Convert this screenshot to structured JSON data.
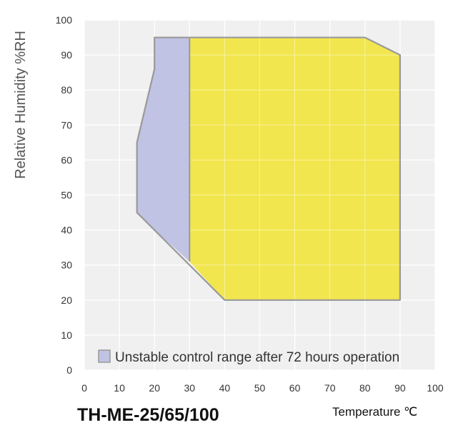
{
  "model_title": "TH-ME-25/65/100",
  "chart_data": {
    "type": "area",
    "xlabel": "Temperature ℃",
    "ylabel": "Relative Humidity %RH",
    "xlim": [
      0,
      100
    ],
    "ylim": [
      0,
      100
    ],
    "x_ticks": [
      0,
      10,
      20,
      30,
      40,
      50,
      60,
      70,
      80,
      90,
      100
    ],
    "y_ticks": [
      0,
      10,
      20,
      30,
      40,
      50,
      60,
      70,
      80,
      90,
      100
    ],
    "grid": true,
    "legend_position": "bottom",
    "series": [
      {
        "name": "Unstable control range after 72 hours operation",
        "color": "#c0c3e3",
        "points": [
          [
            20,
            95
          ],
          [
            30,
            95
          ],
          [
            30,
            31
          ],
          [
            20,
            40
          ],
          [
            15,
            45
          ],
          [
            15,
            65
          ],
          [
            20,
            86
          ]
        ]
      },
      {
        "color": "#f2e64e",
        "points": [
          [
            30,
            95
          ],
          [
            80,
            95
          ],
          [
            90,
            90
          ],
          [
            90,
            20
          ],
          [
            40,
            20
          ],
          [
            30,
            31
          ]
        ]
      }
    ],
    "outline_points": [
      [
        20,
        95
      ],
      [
        80,
        95
      ],
      [
        90,
        90
      ],
      [
        90,
        20
      ],
      [
        40,
        20
      ],
      [
        20,
        40
      ],
      [
        15,
        45
      ],
      [
        15,
        65
      ],
      [
        20,
        86
      ]
    ],
    "colors": {
      "plot_background": "#f0f0f0",
      "grid": "#ffffff",
      "outline": "#999999"
    }
  }
}
